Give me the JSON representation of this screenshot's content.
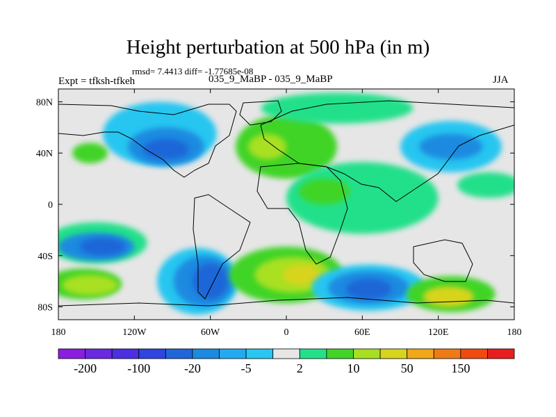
{
  "chart_data": {
    "type": "filled-contour-map",
    "title": "Height perturbation at 500 hPa (in m)",
    "subtitle": "rmsd= 7.4413 diff= -1.77685e-08",
    "left_label": "Expt = tfksh-tfkeh",
    "center_label": "035_9_MaBP - 035_9_MaBP",
    "right_label": "JJA",
    "x_range": [
      -180,
      180
    ],
    "y_range": [
      -90,
      90
    ],
    "x_ticks": [
      {
        "value": -180,
        "label": "180"
      },
      {
        "value": -120,
        "label": "120W"
      },
      {
        "value": -60,
        "label": "60W"
      },
      {
        "value": 0,
        "label": "0"
      },
      {
        "value": 60,
        "label": "60E"
      },
      {
        "value": 120,
        "label": "120E"
      },
      {
        "value": 180,
        "label": "180"
      }
    ],
    "y_ticks": [
      {
        "value": 80,
        "label": "80N"
      },
      {
        "value": 40,
        "label": "40N"
      },
      {
        "value": 0,
        "label": "0"
      },
      {
        "value": -40,
        "label": "40S"
      },
      {
        "value": -80,
        "label": "80S"
      }
    ],
    "colorbar": {
      "colors": [
        "#8a1ee0",
        "#6a28e0",
        "#4b2fe0",
        "#2f44e0",
        "#1f66d8",
        "#1b8ae0",
        "#22aaf0",
        "#28c6f0",
        "#e6e6e6",
        "#24e08a",
        "#40d428",
        "#a8e020",
        "#d8d41c",
        "#f0a818",
        "#f07a14",
        "#f04a10",
        "#e81e1e"
      ],
      "labels": [
        "-200",
        "-100",
        "-20",
        "-5",
        "2",
        "10",
        "50",
        "150"
      ]
    },
    "blobs": [
      {
        "lon": -150,
        "lat": -30,
        "rx": 40,
        "ry": 16,
        "color": "#24e08a"
      },
      {
        "lon": -150,
        "lat": -33,
        "rx": 30,
        "ry": 11,
        "color": "#1b8ae0"
      },
      {
        "lon": -145,
        "lat": -33,
        "rx": 18,
        "ry": 7,
        "color": "#1f66d8"
      },
      {
        "lon": -160,
        "lat": -62,
        "rx": 30,
        "ry": 12,
        "color": "#40d428"
      },
      {
        "lon": -155,
        "lat": -63,
        "rx": 22,
        "ry": 8,
        "color": "#a8e020"
      },
      {
        "lon": -70,
        "lat": -60,
        "rx": 32,
        "ry": 26,
        "color": "#28c6f0"
      },
      {
        "lon": -65,
        "lat": -60,
        "rx": 24,
        "ry": 20,
        "color": "#1b8ae0"
      },
      {
        "lon": -60,
        "lat": -60,
        "rx": 14,
        "ry": 14,
        "color": "#1f66d8"
      },
      {
        "lon": 0,
        "lat": -55,
        "rx": 45,
        "ry": 22,
        "color": "#40d428"
      },
      {
        "lon": 5,
        "lat": -55,
        "rx": 30,
        "ry": 14,
        "color": "#a8e020"
      },
      {
        "lon": 12,
        "lat": -55,
        "rx": 15,
        "ry": 8,
        "color": "#d8d41c"
      },
      {
        "lon": 65,
        "lat": -65,
        "rx": 45,
        "ry": 18,
        "color": "#28c6f0"
      },
      {
        "lon": 65,
        "lat": -65,
        "rx": 32,
        "ry": 13,
        "color": "#1b8ae0"
      },
      {
        "lon": 65,
        "lat": -66,
        "rx": 18,
        "ry": 8,
        "color": "#1f66d8"
      },
      {
        "lon": 130,
        "lat": -70,
        "rx": 35,
        "ry": 14,
        "color": "#40d428"
      },
      {
        "lon": 128,
        "lat": -72,
        "rx": 20,
        "ry": 8,
        "color": "#d8d41c"
      },
      {
        "lon": -100,
        "lat": 55,
        "rx": 45,
        "ry": 25,
        "color": "#28c6f0"
      },
      {
        "lon": -95,
        "lat": 45,
        "rx": 30,
        "ry": 15,
        "color": "#1b8ae0"
      },
      {
        "lon": -95,
        "lat": 43,
        "rx": 18,
        "ry": 8,
        "color": "#1f66d8"
      },
      {
        "lon": -155,
        "lat": 40,
        "rx": 14,
        "ry": 8,
        "color": "#40d428"
      },
      {
        "lon": 0,
        "lat": 45,
        "rx": 40,
        "ry": 25,
        "color": "#40d428"
      },
      {
        "lon": -15,
        "lat": 45,
        "rx": 15,
        "ry": 10,
        "color": "#a8e020"
      },
      {
        "lon": 40,
        "lat": 75,
        "rx": 60,
        "ry": 12,
        "color": "#24e08a"
      },
      {
        "lon": 60,
        "lat": 5,
        "rx": 60,
        "ry": 28,
        "color": "#24e08a"
      },
      {
        "lon": 30,
        "lat": 10,
        "rx": 20,
        "ry": 10,
        "color": "#40d428"
      },
      {
        "lon": 130,
        "lat": 45,
        "rx": 40,
        "ry": 20,
        "color": "#28c6f0"
      },
      {
        "lon": 130,
        "lat": 45,
        "rx": 25,
        "ry": 10,
        "color": "#1b8ae0"
      },
      {
        "lon": 160,
        "lat": 15,
        "rx": 25,
        "ry": 10,
        "color": "#24e08a"
      }
    ]
  }
}
